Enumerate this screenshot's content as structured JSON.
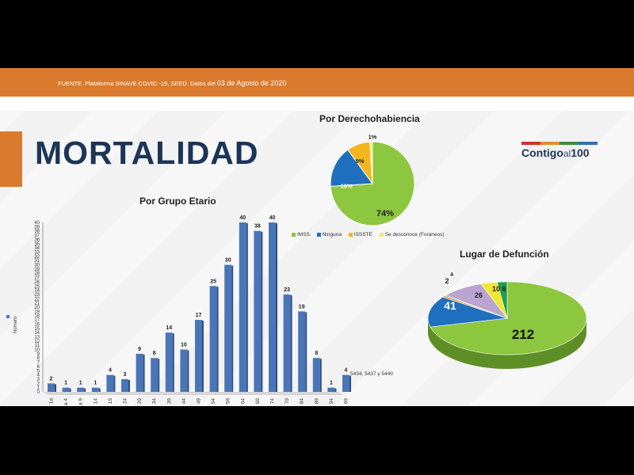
{
  "header": {
    "source": "FUENTE. Plataforma SINAVE COVID -19, SEED. Datos del",
    "source_date": "03 de Agosto de 2020"
  },
  "slide_title": "MORTALIDAD",
  "logo": {
    "part1": "Contigo",
    "part2": "al",
    "part3": "100"
  },
  "colors": {
    "orange": "#d97a2e",
    "navy": "#1c3557",
    "bar_blue": "#4a76b8"
  },
  "chart_data": [
    {
      "type": "bar",
      "title": "Por Grupo Etario",
      "legend": "Número",
      "categories": [
        "1a",
        "a 4",
        "a 9",
        "14",
        "19",
        "24",
        "29",
        "34",
        "39",
        "44",
        "49",
        "54",
        "59",
        "64",
        "69",
        "74",
        "79",
        "84",
        "89",
        "94",
        "99"
      ],
      "values": [
        2,
        1,
        1,
        1,
        4,
        3,
        9,
        8,
        14,
        10,
        17,
        25,
        30,
        40,
        38,
        40,
        23,
        19,
        8,
        1,
        4
      ],
      "ylim": [
        0,
        40
      ],
      "annotation": "5434, 5437 y 5440"
    },
    {
      "type": "pie",
      "title": "Por Derechohabiencia",
      "labels": [
        "IMSS",
        "Ninguna",
        "ISSSTE",
        "Se desconoce (Foráneos)"
      ],
      "values": [
        74,
        16,
        9,
        1
      ],
      "value_labels": [
        "74%",
        "16%",
        "9%",
        "1%"
      ],
      "colors": [
        "#8dc63f",
        "#1f6fbf",
        "#f3b61f",
        "#f5e66a"
      ]
    },
    {
      "type": "pie",
      "title": "Lugar de Defunción",
      "values": [
        212,
        41,
        2,
        1,
        26,
        10,
        6
      ],
      "value_labels": [
        "212",
        "41",
        "2",
        "1",
        "26",
        "10",
        "6"
      ],
      "colors": [
        "#8dc63f",
        "#1f6fbf",
        "#e2902f",
        "#6d6d6d",
        "#b9a5cf",
        "#f2e635",
        "#1e9e4e"
      ]
    }
  ]
}
